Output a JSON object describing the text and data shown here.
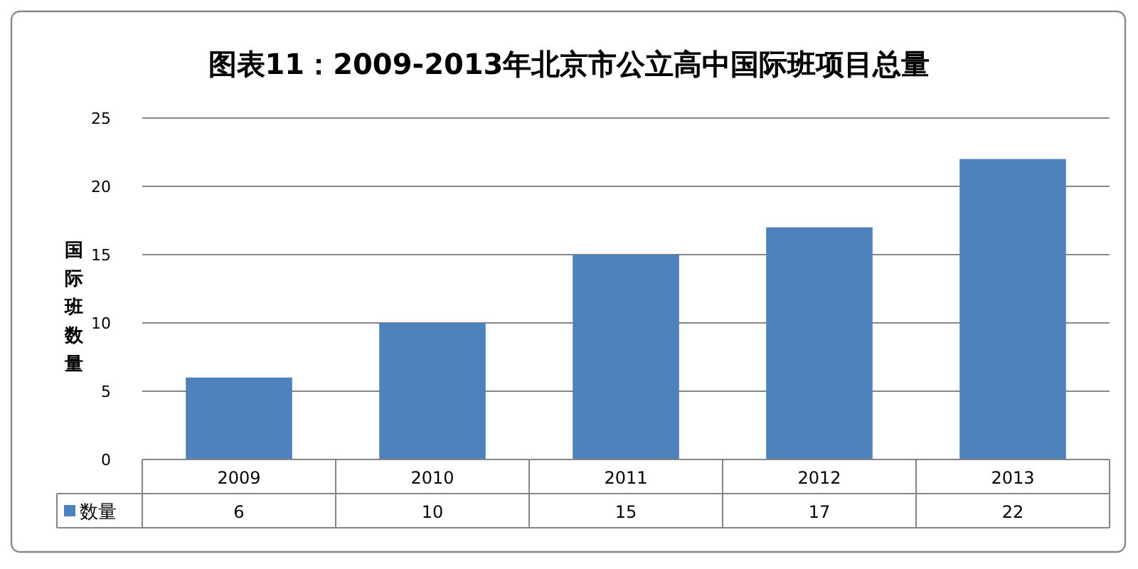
{
  "chart_data": {
    "type": "bar",
    "title": "图表11：2009-2013年北京市公立高中国际班项目总量",
    "ylabel": "国际班数量",
    "categories": [
      "2009",
      "2010",
      "2011",
      "2012",
      "2013"
    ],
    "series": [
      {
        "name": "数量",
        "color": "#4f81bd",
        "values": [
          6,
          10,
          15,
          17,
          22
        ]
      }
    ],
    "ylim": [
      0,
      25
    ],
    "yticks": [
      0,
      5,
      10,
      15,
      20,
      25
    ],
    "grid": "y",
    "data_labels": true,
    "legend": "bottom"
  }
}
